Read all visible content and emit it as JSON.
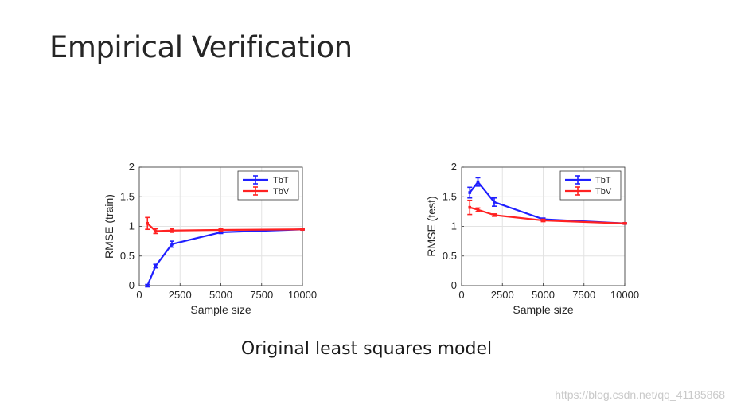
{
  "slide": {
    "title": "Empirical Verification",
    "caption": "Original least squares model",
    "watermark": "https://blog.csdn.net/qq_41185868"
  },
  "chart_data": [
    {
      "type": "line",
      "xlabel": "Sample size",
      "ylabel": "RMSE (train)",
      "xlim": [
        0,
        10000
      ],
      "ylim": [
        0,
        2
      ],
      "xticks": [
        0,
        2500,
        5000,
        7500,
        10000
      ],
      "yticks": [
        0,
        0.5,
        1,
        1.5,
        2
      ],
      "xtick_labels": [
        "0",
        "2500",
        "5000",
        "7500",
        "10000"
      ],
      "ytick_labels": [
        "0",
        "0.5",
        "1",
        "1.5",
        "2"
      ],
      "grid": true,
      "legend_position": "top-right",
      "series": [
        {
          "name": "TbT",
          "color": "#1f1fff",
          "x": [
            500,
            1000,
            2000,
            5000,
            10000
          ],
          "y": [
            0.0,
            0.33,
            0.7,
            0.9,
            0.95
          ],
          "err": [
            0.02,
            0.03,
            0.05,
            0.02,
            0.01
          ]
        },
        {
          "name": "TbV",
          "color": "#ff2222",
          "x": [
            500,
            1000,
            2000,
            5000,
            10000
          ],
          "y": [
            1.05,
            0.92,
            0.93,
            0.94,
            0.95
          ],
          "err": [
            0.1,
            0.04,
            0.03,
            0.02,
            0.01
          ]
        }
      ]
    },
    {
      "type": "line",
      "xlabel": "Sample size",
      "ylabel": "RMSE (test)",
      "xlim": [
        0,
        10000
      ],
      "ylim": [
        0,
        2
      ],
      "xticks": [
        0,
        2500,
        5000,
        7500,
        10000
      ],
      "yticks": [
        0,
        0.5,
        1,
        1.5,
        2
      ],
      "xtick_labels": [
        "0",
        "2500",
        "5000",
        "7500",
        "10000"
      ],
      "ytick_labels": [
        "0",
        "0.5",
        "1",
        "1.5",
        "2"
      ],
      "grid": true,
      "legend_position": "top-right",
      "series": [
        {
          "name": "TbT",
          "color": "#1f1fff",
          "x": [
            500,
            1000,
            2000,
            5000,
            10000
          ],
          "y": [
            1.57,
            1.75,
            1.41,
            1.12,
            1.05
          ],
          "err": [
            0.09,
            0.07,
            0.07,
            0.02,
            0.01
          ]
        },
        {
          "name": "TbV",
          "color": "#ff2222",
          "x": [
            500,
            1000,
            2000,
            5000,
            10000
          ],
          "y": [
            1.32,
            1.28,
            1.19,
            1.1,
            1.05
          ],
          "err": [
            0.12,
            0.03,
            0.02,
            0.02,
            0.01
          ]
        }
      ]
    }
  ]
}
